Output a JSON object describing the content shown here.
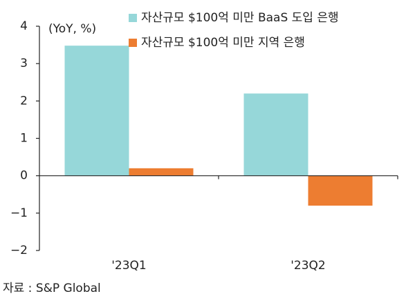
{
  "chart_data": {
    "type": "bar",
    "y_label": "(YoY, %)",
    "categories": [
      "'23Q1",
      "'23Q2"
    ],
    "series": [
      {
        "name": "자산규모 $100억 미만 BaaS 도입 은행",
        "color": "#96d7d9",
        "values": [
          3.48,
          2.2
        ]
      },
      {
        "name": "자산규모 $100억 미만 지역 은행",
        "color": "#ed7d31",
        "values": [
          0.2,
          -0.8
        ]
      }
    ],
    "ylim": [
      -2,
      4
    ],
    "yticks": [
      {
        "value": -2,
        "label": "−2"
      },
      {
        "value": -1,
        "label": "−1"
      },
      0,
      1,
      2,
      3,
      4
    ],
    "source": "자료 : S&P Global"
  }
}
